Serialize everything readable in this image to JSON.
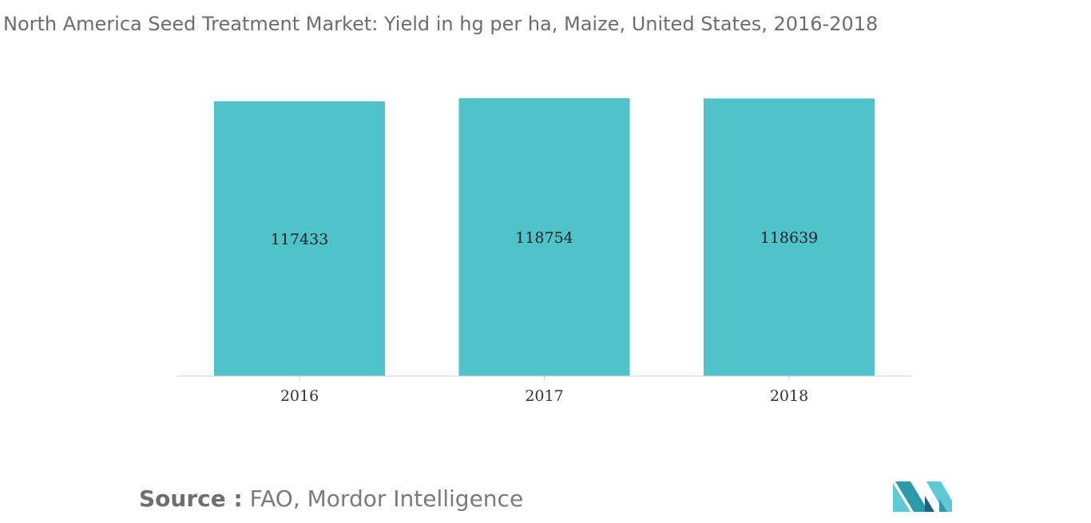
{
  "title": "North America Seed Treatment Market: Yield in hg per ha, Maize, United States, 2016-2018",
  "source": {
    "label": "Source :",
    "text": "FAO, Mordor Intelligence"
  },
  "colors": {
    "bar": "#4fc3ca",
    "axis": "#d0d0d0",
    "label": "#222222",
    "tick_text": "#333333"
  },
  "logo": {
    "icon": "mordor-intelligence-logo-icon",
    "colors": [
      "#2a9aa8",
      "#1e5f87",
      "#5cc9d6"
    ]
  },
  "chart_data": {
    "type": "bar",
    "title": "North America Seed Treatment Market: Yield in hg per ha, Maize, United States, 2016-2018",
    "xlabel": "",
    "ylabel": "",
    "categories": [
      "2016",
      "2017",
      "2018"
    ],
    "values": [
      117433,
      118754,
      118639
    ],
    "data_labels": [
      "117433",
      "118754",
      "118639"
    ],
    "ylim": [
      0,
      118754
    ],
    "grid": false,
    "legend": "none"
  }
}
